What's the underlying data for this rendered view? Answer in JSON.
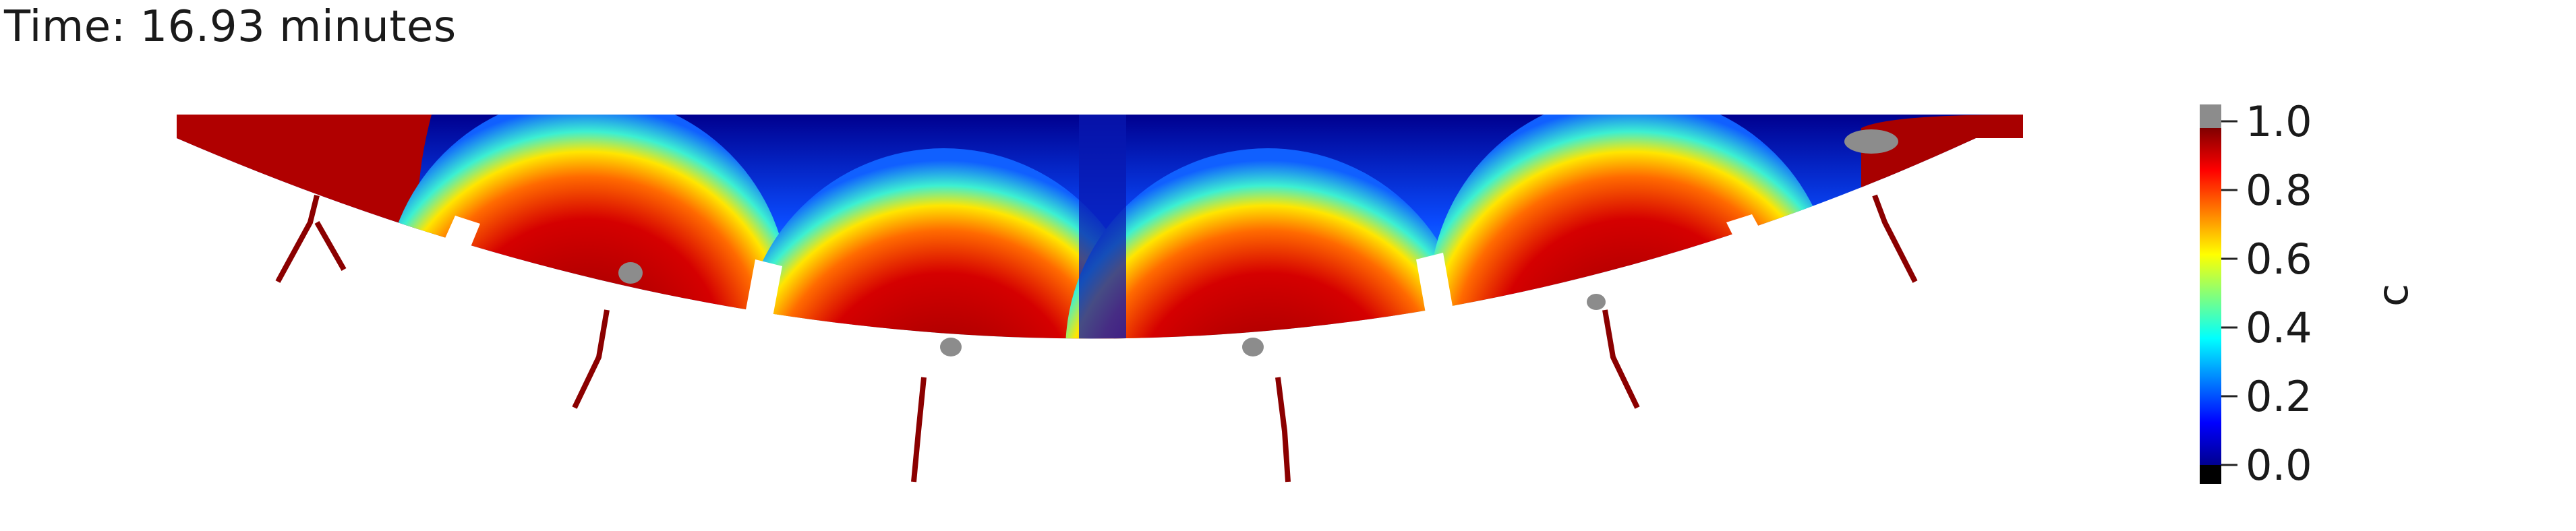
{
  "time_label": "Time: 16.93 minutes",
  "colorbar": {
    "title": "c",
    "ticks": [
      "1.0",
      "0.8",
      "0.6",
      "0.4",
      "0.2",
      "0.0"
    ],
    "range": [
      0.0,
      1.0
    ],
    "above_range_color": "#8c8c8c",
    "below_range_color": "#000000",
    "colormap": "jet"
  },
  "field": {
    "description_colors": {
      "high": "#9b0000",
      "low": "#00008f"
    }
  }
}
